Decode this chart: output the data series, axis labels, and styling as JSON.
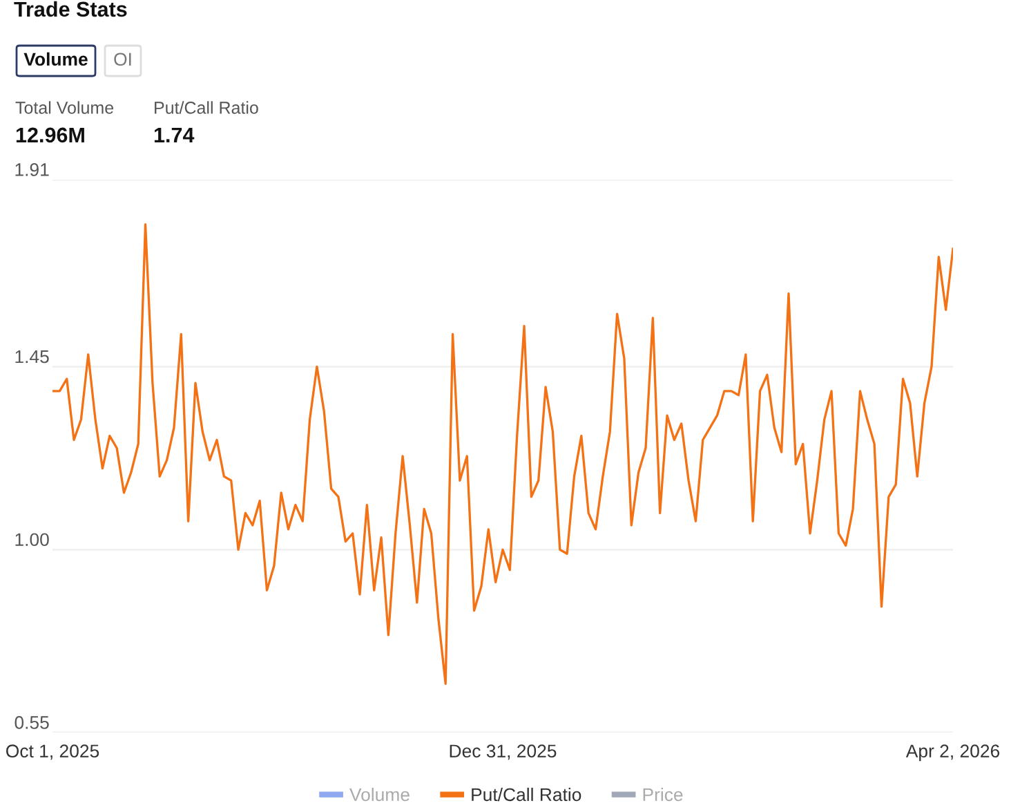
{
  "chart_data": {
    "type": "line",
    "title": "Trade Stats",
    "annotations": [
      "Volume",
      "OI",
      "Total Volume",
      "12.96M",
      "Put/Call Ratio",
      "1.74"
    ],
    "categories": [
      "Oct 1, 2025",
      null,
      null,
      null,
      null,
      null,
      null,
      null,
      null,
      null,
      null,
      null,
      null,
      null,
      null,
      null,
      null,
      null,
      null,
      null,
      null,
      null,
      null,
      null,
      null,
      null,
      null,
      null,
      null,
      null,
      null,
      null,
      null,
      null,
      null,
      null,
      null,
      null,
      null,
      null,
      null,
      null,
      null,
      null,
      null,
      null,
      null,
      null,
      null,
      null,
      null,
      null,
      null,
      null,
      null,
      null,
      null,
      null,
      null,
      null,
      null,
      null,
      null,
      "Dec 31, 2025",
      null,
      null,
      null,
      null,
      null,
      null,
      null,
      null,
      null,
      null,
      null,
      null,
      null,
      null,
      null,
      null,
      null,
      null,
      null,
      null,
      null,
      null,
      null,
      null,
      null,
      null,
      null,
      null,
      null,
      null,
      null,
      null,
      null,
      null,
      null,
      null,
      null,
      null,
      null,
      null,
      null,
      null,
      null,
      null,
      null,
      null,
      null,
      null,
      null,
      null,
      null,
      null,
      null,
      null,
      null,
      null,
      null,
      null,
      null,
      null,
      null,
      null,
      "Apr 2, 2026"
    ],
    "series": [
      {
        "name": "Volume",
        "color": "#8fa8f0",
        "values": [
          null,
          null,
          null,
          null,
          null,
          null,
          null,
          null,
          null,
          null,
          null,
          null,
          null,
          null,
          null,
          null,
          null,
          null,
          null,
          null,
          null,
          null,
          null,
          null,
          null,
          null,
          null,
          null,
          null,
          null,
          null,
          null,
          null,
          null,
          null,
          null,
          null,
          null,
          null,
          null,
          null,
          null,
          null,
          null,
          null,
          null,
          null,
          null,
          null,
          null,
          null,
          null,
          null,
          null,
          null,
          null,
          null,
          null,
          null,
          null,
          null,
          null,
          null,
          null,
          null,
          null,
          null,
          null,
          null,
          null,
          null,
          null,
          null,
          null,
          null,
          null,
          null,
          null,
          null,
          null,
          null,
          null,
          null,
          null,
          null,
          null,
          null,
          null,
          null,
          null,
          null,
          null,
          null,
          null,
          null,
          null,
          null,
          null,
          null,
          null,
          null,
          null,
          null,
          null,
          null,
          null,
          null,
          null,
          null,
          null,
          null,
          null,
          null,
          null,
          null,
          null,
          null,
          null,
          null,
          null,
          null,
          null,
          null,
          null,
          null,
          null,
          null
        ]
      },
      {
        "name": "Put/Call Ratio",
        "color": "#f47216",
        "values": [
          1.39,
          1.39,
          1.42,
          1.27,
          1.32,
          1.48,
          1.32,
          1.2,
          1.28,
          1.25,
          1.14,
          1.19,
          1.26,
          1.8,
          1.41,
          1.18,
          1.22,
          1.3,
          1.53,
          1.07,
          1.41,
          1.29,
          1.22,
          1.27,
          1.18,
          1.17,
          1.0,
          1.09,
          1.06,
          1.12,
          0.9,
          0.96,
          1.14,
          1.05,
          1.11,
          1.07,
          1.32,
          1.45,
          1.34,
          1.15,
          1.13,
          1.02,
          1.04,
          0.89,
          1.11,
          0.9,
          1.03,
          0.79,
          1.04,
          1.23,
          1.06,
          0.87,
          1.1,
          1.04,
          0.83,
          0.67,
          1.53,
          1.17,
          1.23,
          0.85,
          0.91,
          1.05,
          0.92,
          1.0,
          0.95,
          1.28,
          1.55,
          1.13,
          1.17,
          1.4,
          1.29,
          1.0,
          0.99,
          1.18,
          1.28,
          1.09,
          1.05,
          1.18,
          1.29,
          1.58,
          1.47,
          1.06,
          1.19,
          1.25,
          1.57,
          1.09,
          1.33,
          1.27,
          1.31,
          1.17,
          1.07,
          1.27,
          1.3,
          1.33,
          1.39,
          1.39,
          1.38,
          1.48,
          1.07,
          1.39,
          1.43,
          1.3,
          1.24,
          1.63,
          1.21,
          1.26,
          1.04,
          1.17,
          1.32,
          1.39,
          1.04,
          1.01,
          1.1,
          1.39,
          1.32,
          1.26,
          0.86,
          1.13,
          1.16,
          1.42,
          1.36,
          1.18,
          1.36,
          1.45,
          1.72,
          1.59,
          1.74
        ]
      },
      {
        "name": "Price",
        "color": "#a0a8b8",
        "values": [
          null,
          null,
          null,
          null,
          null,
          null,
          null,
          null,
          null,
          null,
          null,
          null,
          null,
          null,
          null,
          null,
          null,
          null,
          null,
          null,
          null,
          null,
          null,
          null,
          null,
          null,
          null,
          null,
          null,
          null,
          null,
          null,
          null,
          null,
          null,
          null,
          null,
          null,
          null,
          null,
          null,
          null,
          null,
          null,
          null,
          null,
          null,
          null,
          null,
          null,
          null,
          null,
          null,
          null,
          null,
          null,
          null,
          null,
          null,
          null,
          null,
          null,
          null,
          null,
          null,
          null,
          null,
          null,
          null,
          null,
          null,
          null,
          null,
          null,
          null,
          null,
          null,
          null,
          null,
          null,
          null,
          null,
          null,
          null,
          null,
          null,
          null,
          null,
          null,
          null,
          null,
          null,
          null,
          null,
          null,
          null,
          null,
          null,
          null,
          null,
          null,
          null,
          null,
          null,
          null,
          null,
          null,
          null,
          null,
          null,
          null,
          null,
          null,
          null,
          null,
          null,
          null,
          null,
          null,
          null,
          null,
          null,
          null,
          null,
          null,
          null,
          null
        ]
      }
    ],
    "ylim": [
      0.55,
      1.91
    ],
    "yticks": [
      0.55,
      {
        "value": 1,
        "label": "1.00"
      },
      1.45,
      1.91
    ],
    "grid": "y",
    "legend": "bottom",
    "marker": "none",
    "line_style": "solid"
  }
}
